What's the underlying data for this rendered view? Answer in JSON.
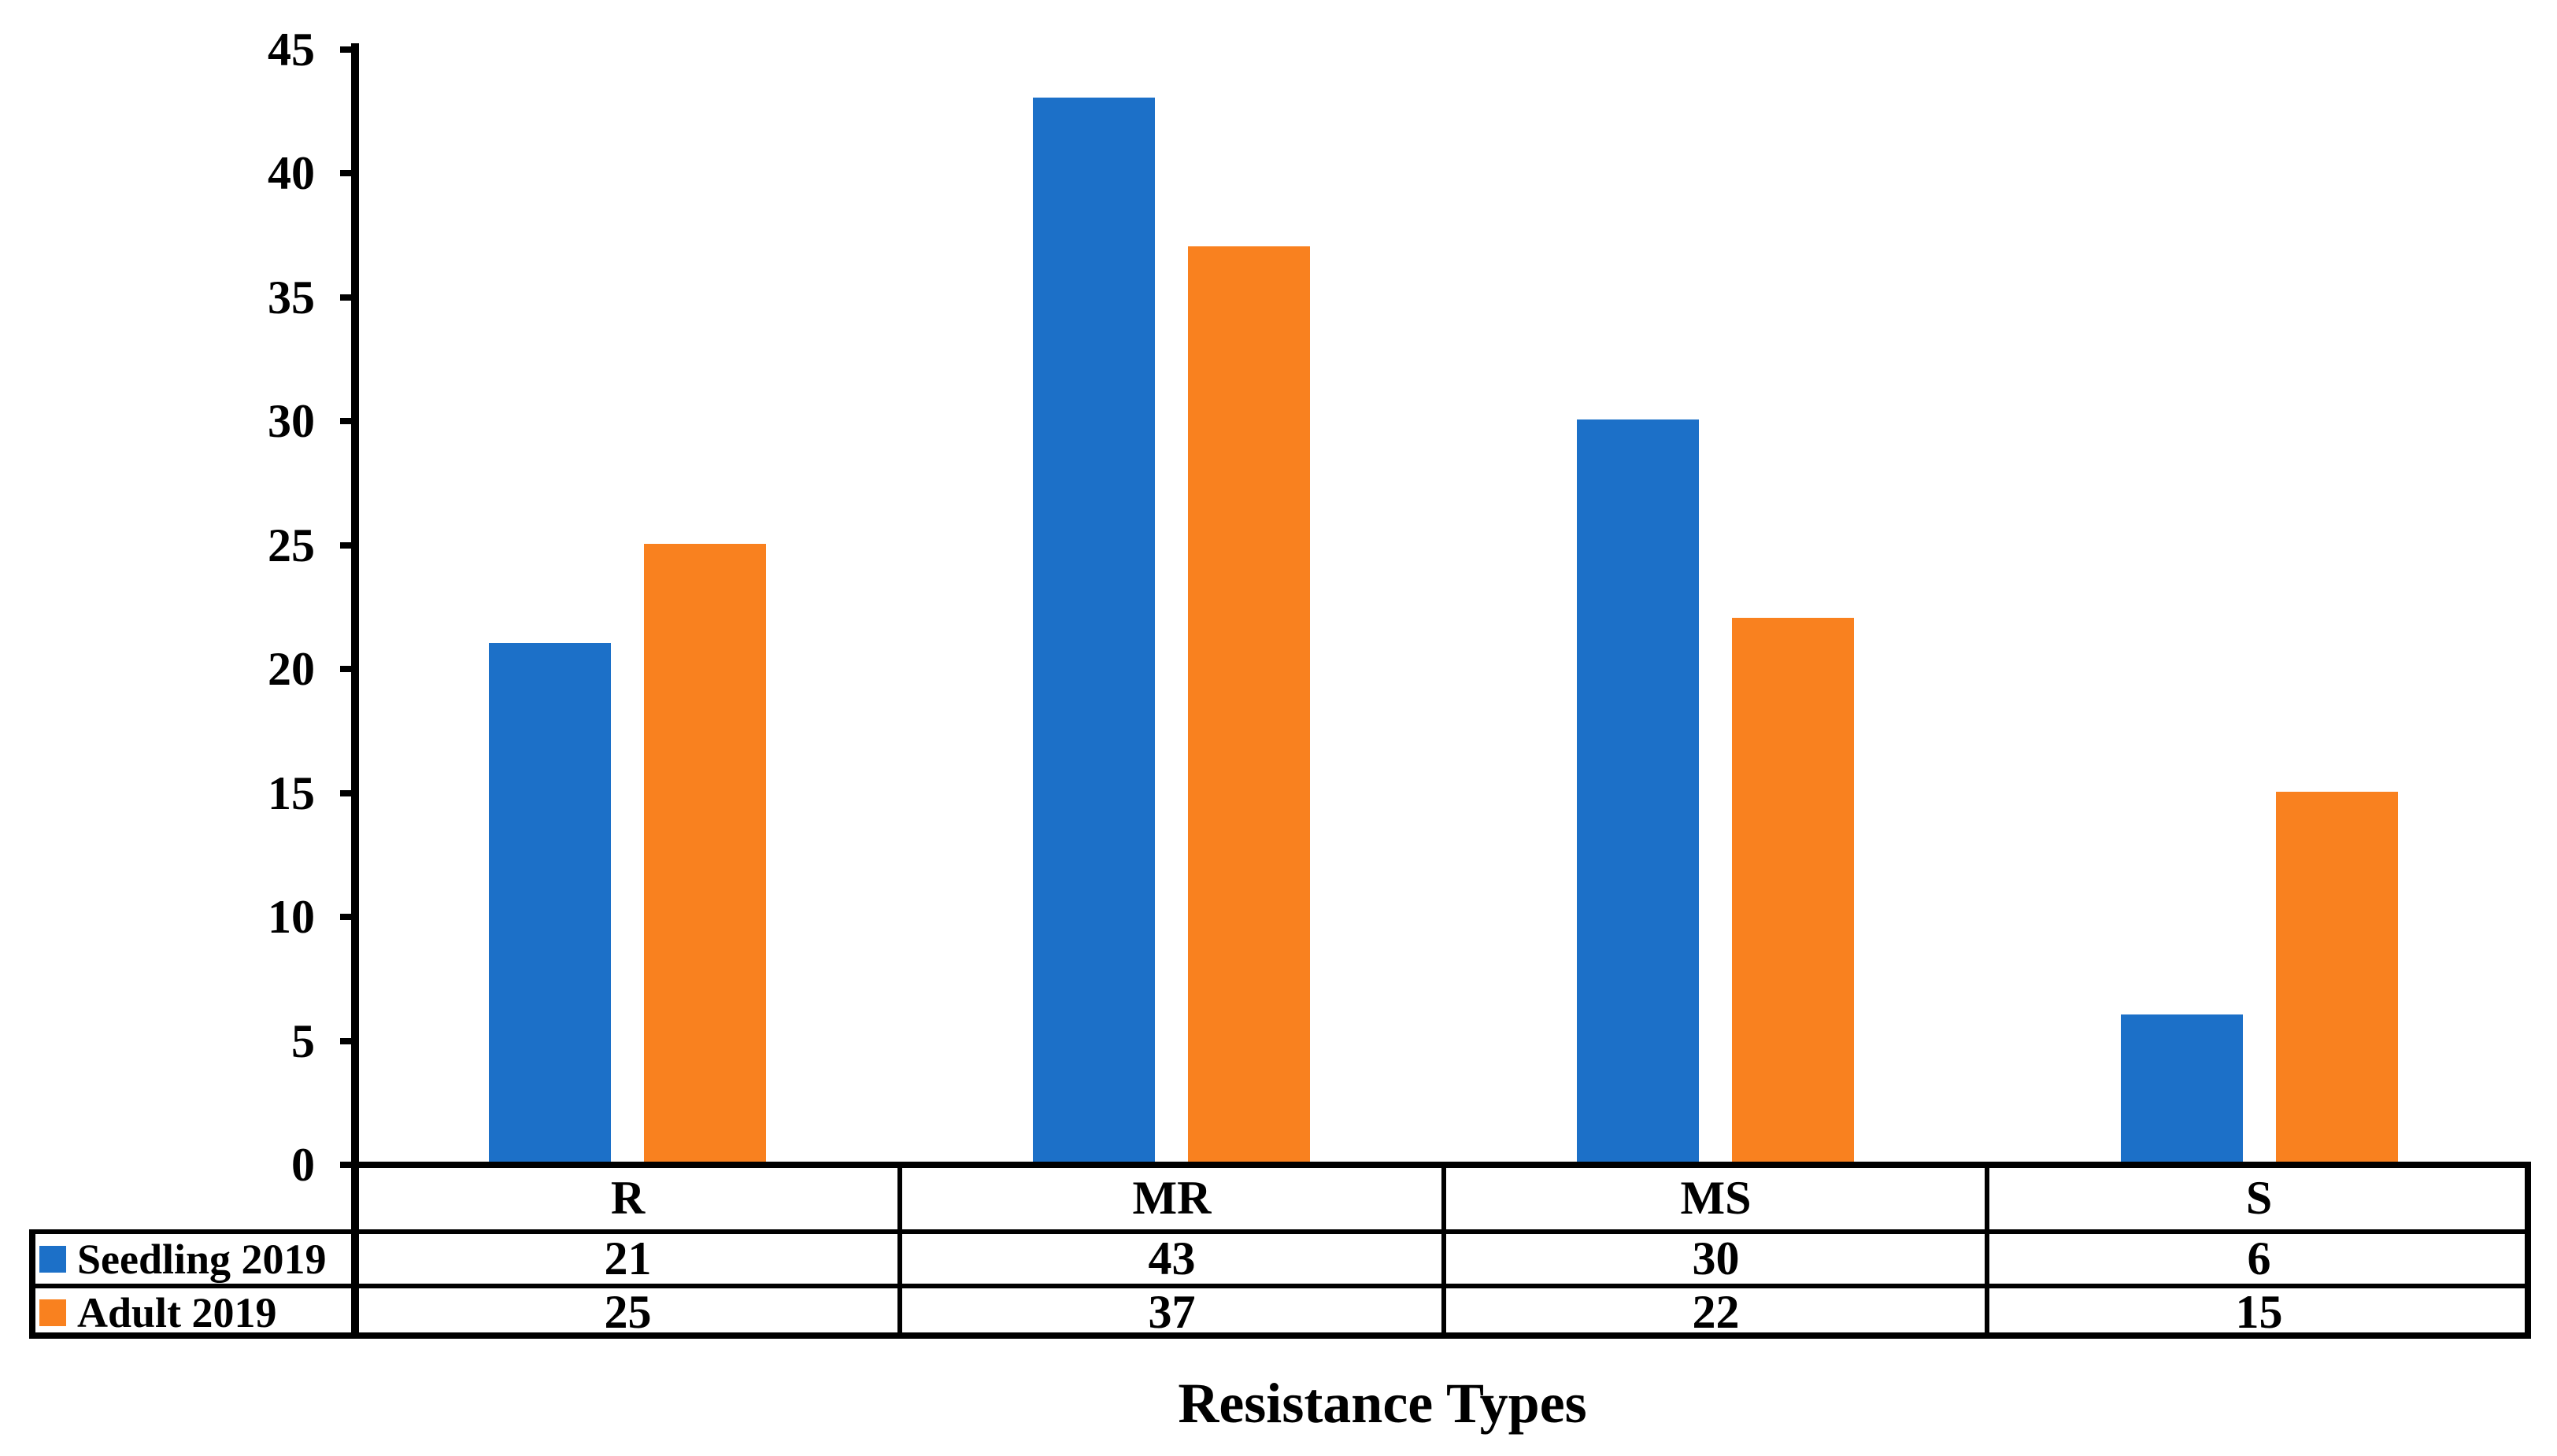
{
  "chart_data": {
    "type": "bar",
    "title": "",
    "xlabel": "Resistance Types",
    "ylabel": "",
    "categories": [
      "R",
      "MR",
      "MS",
      "S"
    ],
    "series": [
      {
        "name": "Seedling 2019",
        "color": "#1C70C8",
        "values": [
          21,
          43,
          30,
          6
        ]
      },
      {
        "name": "Adult 2019",
        "color": "#F9811F",
        "values": [
          25,
          37,
          22,
          15
        ]
      }
    ],
    "ylim": [
      0,
      45
    ],
    "ytick_step": 5,
    "yticks": [
      0,
      5,
      10,
      15,
      20,
      25,
      30,
      35,
      40,
      45
    ],
    "grid": false,
    "legend_position": "data-table-left",
    "data_table": true,
    "bar_color_axis_and_text": "#000000",
    "background": "#ffffff"
  }
}
